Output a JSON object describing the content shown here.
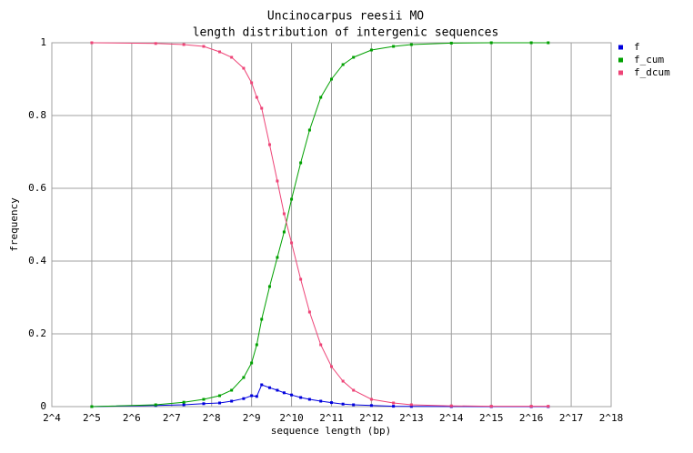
{
  "chart_data": {
    "type": "line",
    "title": "Uncinocarpus reesii MO",
    "subtitle": "length distribution of intergenic sequences",
    "x_label": "sequence length (bp)",
    "y_label": "frequency",
    "log_x": 2,
    "grid": true,
    "legend": "right",
    "xlim": [
      16,
      262144
    ],
    "ylim": [
      0,
      1
    ],
    "xticks": [
      {
        "value": 16,
        "label": "2^4"
      },
      {
        "value": 32,
        "label": "2^5"
      },
      {
        "value": 64,
        "label": "2^6"
      },
      {
        "value": 128,
        "label": "2^7"
      },
      {
        "value": 256,
        "label": "2^8"
      },
      {
        "value": 512,
        "label": "2^9"
      },
      {
        "value": 1024,
        "label": "2^10"
      },
      {
        "value": 2048,
        "label": "2^11"
      },
      {
        "value": 4096,
        "label": "2^12"
      },
      {
        "value": 8192,
        "label": "2^13"
      },
      {
        "value": 16384,
        "label": "2^14"
      },
      {
        "value": 32768,
        "label": "2^15"
      },
      {
        "value": 65536,
        "label": "2^16"
      },
      {
        "value": 131072,
        "label": "2^17"
      },
      {
        "value": 262144,
        "label": "2^18"
      }
    ],
    "yticks": [
      0,
      0.2,
      0.4,
      0.6,
      0.8,
      1
    ],
    "x": [
      32,
      97,
      158,
      223,
      294,
      362,
      446,
      512,
      560,
      610,
      700,
      800,
      900,
      1024,
      1200,
      1400,
      1700,
      2048,
      2500,
      3000,
      4096,
      6000,
      8192,
      16384,
      32768,
      65536,
      88000
    ],
    "series": [
      {
        "name": "f",
        "color": "#0000dd",
        "values": [
          0,
          0.003,
          0.005,
          0.008,
          0.01,
          0.015,
          0.022,
          0.03,
          0.028,
          0.06,
          0.052,
          0.045,
          0.038,
          0.032,
          0.025,
          0.02,
          0.015,
          0.011,
          0.007,
          0.005,
          0.003,
          0.001,
          0.0005,
          0.0002,
          0.0001,
          0,
          0
        ]
      },
      {
        "name": "f_cum",
        "color": "#00a000",
        "values": [
          0,
          0.005,
          0.012,
          0.02,
          0.03,
          0.045,
          0.08,
          0.12,
          0.17,
          0.24,
          0.33,
          0.41,
          0.48,
          0.57,
          0.67,
          0.76,
          0.85,
          0.9,
          0.94,
          0.96,
          0.98,
          0.99,
          0.995,
          0.999,
          1,
          1,
          1
        ]
      },
      {
        "name": "f_dcum",
        "color": "#ee4477",
        "values": [
          1,
          0.998,
          0.995,
          0.99,
          0.975,
          0.96,
          0.93,
          0.89,
          0.85,
          0.82,
          0.72,
          0.62,
          0.53,
          0.45,
          0.35,
          0.26,
          0.17,
          0.11,
          0.07,
          0.045,
          0.02,
          0.01,
          0.005,
          0.002,
          0.001,
          0.001,
          0.001
        ]
      }
    ]
  }
}
